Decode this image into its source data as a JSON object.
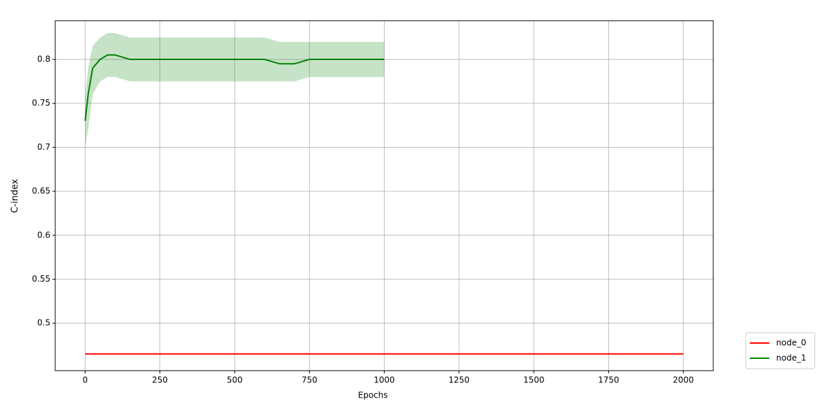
{
  "chart_data": {
    "type": "line",
    "xlabel": "Epochs",
    "ylabel": "C-index",
    "xlim": [
      -100,
      2100
    ],
    "xticks": [
      0,
      250,
      500,
      750,
      1000,
      1250,
      1500,
      1750,
      2000
    ],
    "ylim": [
      0.446,
      0.844
    ],
    "yticks": [
      0.5,
      0.55,
      0.6,
      0.65,
      0.7,
      0.75,
      0.8
    ],
    "grid": true,
    "legend": "lower right",
    "series": [
      {
        "name": "node_0",
        "color": "red",
        "x": [
          0,
          2000
        ],
        "values": [
          0.465,
          0.465
        ]
      },
      {
        "name": "node_1",
        "color": "green",
        "x": [
          0,
          10,
          25,
          50,
          75,
          100,
          150,
          200,
          250,
          300,
          350,
          400,
          450,
          500,
          550,
          600,
          650,
          700,
          750,
          800,
          850,
          900,
          950,
          1000
        ],
        "values": [
          0.73,
          0.76,
          0.79,
          0.8,
          0.805,
          0.805,
          0.8,
          0.8,
          0.8,
          0.8,
          0.8,
          0.8,
          0.8,
          0.8,
          0.8,
          0.8,
          0.795,
          0.795,
          0.8,
          0.8,
          0.8,
          0.8,
          0.8,
          0.8
        ],
        "lower": [
          0.7,
          0.72,
          0.76,
          0.775,
          0.78,
          0.78,
          0.775,
          0.775,
          0.775,
          0.775,
          0.775,
          0.775,
          0.775,
          0.775,
          0.775,
          0.775,
          0.775,
          0.775,
          0.78,
          0.78,
          0.78,
          0.78,
          0.78,
          0.78
        ],
        "upper": [
          0.76,
          0.79,
          0.815,
          0.825,
          0.83,
          0.83,
          0.825,
          0.825,
          0.825,
          0.825,
          0.825,
          0.825,
          0.825,
          0.825,
          0.825,
          0.825,
          0.82,
          0.82,
          0.82,
          0.82,
          0.82,
          0.82,
          0.82,
          0.82
        ]
      }
    ]
  }
}
